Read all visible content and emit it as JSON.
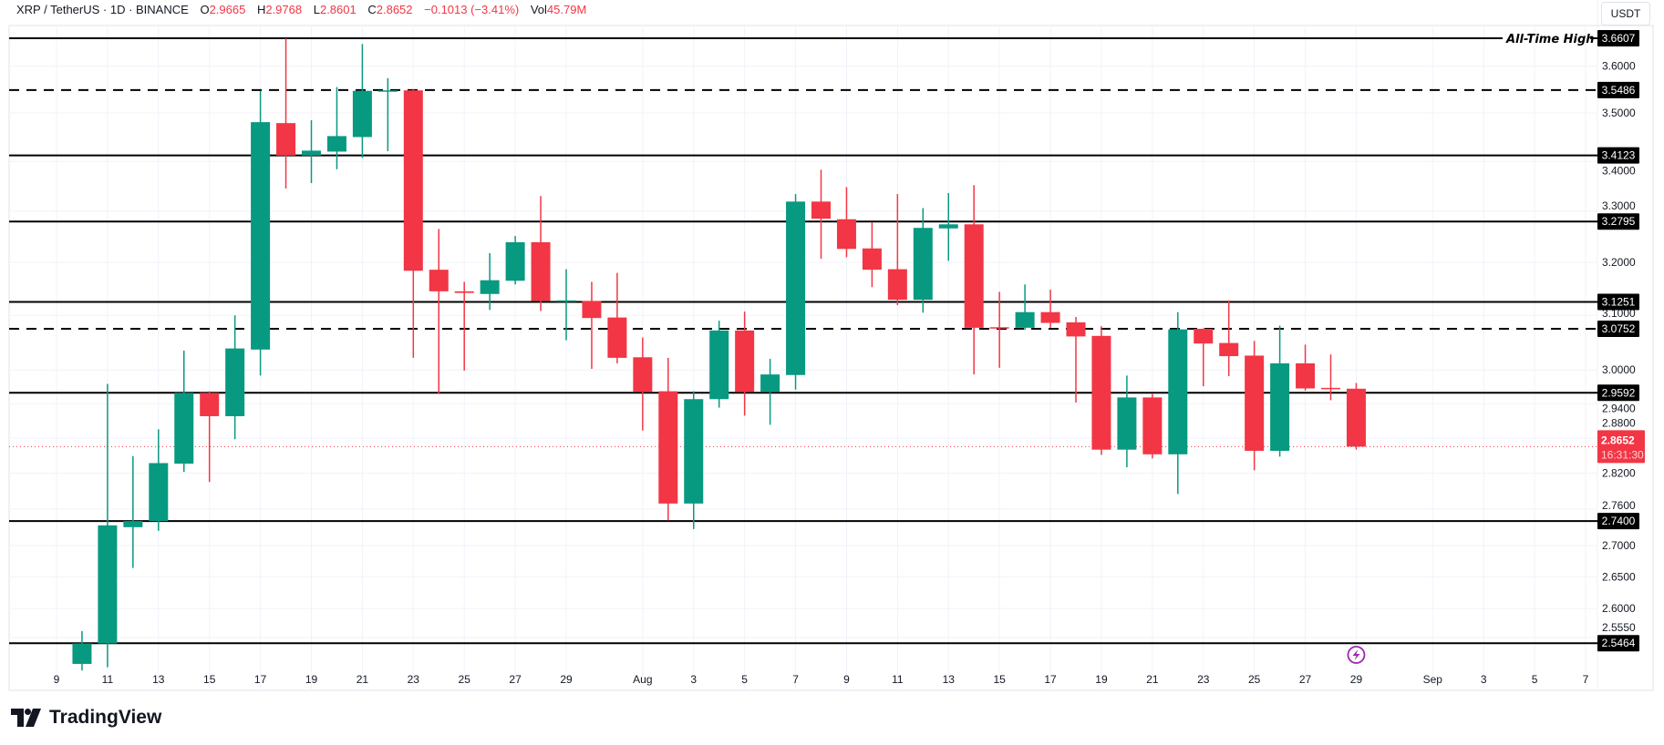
{
  "header": {
    "symbol": "XRP / TetherUS · 1D · BINANCE",
    "open_label": "O",
    "open": "2.9665",
    "high_label": "H",
    "high": "2.9768",
    "low_label": "L",
    "low": "2.8601",
    "close_label": "C",
    "close": "2.8652",
    "change": "−0.1013 (−3.41%)",
    "vol_label": "Vol",
    "vol": "45.79M"
  },
  "currency_button": "USDT",
  "branding": "TradingView",
  "colors": {
    "up": "#089981",
    "down": "#f23645",
    "level": "#000000",
    "event_icon": "#9c27b0"
  },
  "event_icon": "lightning-icon",
  "chart_data": {
    "type": "candlestick",
    "scale": "log",
    "grid": true,
    "ylim": [
      2.5,
      3.68
    ],
    "y_ticks": [
      "3.6000",
      "3.5000",
      "3.4000",
      "3.3000",
      "3.2000",
      "3.1000",
      "3.0000",
      "2.9400",
      "2.8800",
      "2.8200",
      "2.7600",
      "2.7000",
      "2.6500",
      "2.6000",
      "2.5550"
    ],
    "x_ticks": [
      {
        "label": "9",
        "date": "07-09"
      },
      {
        "label": "11",
        "date": "07-11"
      },
      {
        "label": "13",
        "date": "07-13"
      },
      {
        "label": "15",
        "date": "07-15"
      },
      {
        "label": "17",
        "date": "07-17"
      },
      {
        "label": "19",
        "date": "07-19"
      },
      {
        "label": "21",
        "date": "07-21"
      },
      {
        "label": "23",
        "date": "07-23"
      },
      {
        "label": "25",
        "date": "07-25"
      },
      {
        "label": "27",
        "date": "07-27"
      },
      {
        "label": "29",
        "date": "07-29"
      },
      {
        "label": "Aug",
        "date": "08-01"
      },
      {
        "label": "3",
        "date": "08-03"
      },
      {
        "label": "5",
        "date": "08-05"
      },
      {
        "label": "7",
        "date": "08-07"
      },
      {
        "label": "9",
        "date": "08-09"
      },
      {
        "label": "11",
        "date": "08-11"
      },
      {
        "label": "13",
        "date": "08-13"
      },
      {
        "label": "15",
        "date": "08-15"
      },
      {
        "label": "17",
        "date": "08-17"
      },
      {
        "label": "19",
        "date": "08-19"
      },
      {
        "label": "21",
        "date": "08-21"
      },
      {
        "label": "23",
        "date": "08-23"
      },
      {
        "label": "25",
        "date": "08-25"
      },
      {
        "label": "27",
        "date": "08-27"
      },
      {
        "label": "29",
        "date": "08-29"
      },
      {
        "label": "Sep",
        "date": "09-01"
      },
      {
        "label": "3",
        "date": "09-03"
      },
      {
        "label": "5",
        "date": "09-05"
      },
      {
        "label": "7",
        "date": "09-07"
      }
    ],
    "candles": [
      {
        "date": "07-10",
        "o": 2.515,
        "h": 2.565,
        "l": 2.505,
        "c": 2.546
      },
      {
        "date": "07-11",
        "o": 2.546,
        "h": 2.975,
        "l": 2.51,
        "c": 2.733
      },
      {
        "date": "07-12",
        "o": 2.73,
        "h": 2.849,
        "l": 2.664,
        "c": 2.74
      },
      {
        "date": "07-13",
        "o": 2.74,
        "h": 2.895,
        "l": 2.724,
        "c": 2.837
      },
      {
        "date": "07-14",
        "o": 2.836,
        "h": 3.035,
        "l": 2.822,
        "c": 2.959
      },
      {
        "date": "07-15",
        "o": 2.959,
        "h": 2.962,
        "l": 2.805,
        "c": 2.918
      },
      {
        "date": "07-16",
        "o": 2.918,
        "h": 3.1,
        "l": 2.878,
        "c": 3.039
      },
      {
        "date": "07-17",
        "o": 3.037,
        "h": 3.547,
        "l": 2.99,
        "c": 3.481
      },
      {
        "date": "07-18",
        "o": 3.479,
        "h": 3.6607,
        "l": 3.345,
        "c": 3.412
      },
      {
        "date": "07-19",
        "o": 3.412,
        "h": 3.485,
        "l": 3.356,
        "c": 3.422
      },
      {
        "date": "07-20",
        "o": 3.42,
        "h": 3.555,
        "l": 3.384,
        "c": 3.452
      },
      {
        "date": "07-21",
        "o": 3.45,
        "h": 3.648,
        "l": 3.407,
        "c": 3.547
      },
      {
        "date": "07-22",
        "o": 3.547,
        "h": 3.574,
        "l": 3.421,
        "c": 3.548
      },
      {
        "date": "07-23",
        "o": 3.548,
        "h": 3.55,
        "l": 3.022,
        "c": 3.184
      },
      {
        "date": "07-24",
        "o": 3.186,
        "h": 3.265,
        "l": 2.957,
        "c": 3.145
      },
      {
        "date": "07-25",
        "o": 3.145,
        "h": 3.163,
        "l": 2.999,
        "c": 3.142
      },
      {
        "date": "07-26",
        "o": 3.14,
        "h": 3.218,
        "l": 3.11,
        "c": 3.166
      },
      {
        "date": "07-27",
        "o": 3.165,
        "h": 3.251,
        "l": 3.158,
        "c": 3.239
      },
      {
        "date": "07-28",
        "o": 3.239,
        "h": 3.33,
        "l": 3.108,
        "c": 3.127
      },
      {
        "date": "07-29",
        "o": 3.126,
        "h": 3.187,
        "l": 3.054,
        "c": 3.128
      },
      {
        "date": "07-30",
        "o": 3.127,
        "h": 3.163,
        "l": 3.002,
        "c": 3.095
      },
      {
        "date": "07-31",
        "o": 3.096,
        "h": 3.18,
        "l": 3.012,
        "c": 3.022
      },
      {
        "date": "08-01",
        "o": 3.023,
        "h": 3.059,
        "l": 2.893,
        "c": 2.961
      },
      {
        "date": "08-02",
        "o": 2.962,
        "h": 3.022,
        "l": 2.741,
        "c": 2.769
      },
      {
        "date": "08-03",
        "o": 2.769,
        "h": 2.962,
        "l": 2.727,
        "c": 2.948
      },
      {
        "date": "08-04",
        "o": 2.948,
        "h": 3.09,
        "l": 2.933,
        "c": 3.072
      },
      {
        "date": "08-05",
        "o": 3.072,
        "h": 3.107,
        "l": 2.919,
        "c": 2.961
      },
      {
        "date": "08-06",
        "o": 2.961,
        "h": 3.02,
        "l": 2.903,
        "c": 2.992
      },
      {
        "date": "08-07",
        "o": 2.991,
        "h": 3.334,
        "l": 2.965,
        "c": 3.319
      },
      {
        "date": "08-08",
        "o": 3.319,
        "h": 3.383,
        "l": 3.207,
        "c": 3.285
      },
      {
        "date": "08-09",
        "o": 3.284,
        "h": 3.348,
        "l": 3.21,
        "c": 3.226
      },
      {
        "date": "08-10",
        "o": 3.227,
        "h": 3.278,
        "l": 3.153,
        "c": 3.186
      },
      {
        "date": "08-11",
        "o": 3.187,
        "h": 3.334,
        "l": 3.119,
        "c": 3.129
      },
      {
        "date": "08-12",
        "o": 3.129,
        "h": 3.306,
        "l": 3.105,
        "c": 3.267
      },
      {
        "date": "08-13",
        "o": 3.266,
        "h": 3.336,
        "l": 3.203,
        "c": 3.274
      },
      {
        "date": "08-14",
        "o": 3.274,
        "h": 3.352,
        "l": 2.992,
        "c": 3.077
      },
      {
        "date": "08-15",
        "o": 3.078,
        "h": 3.144,
        "l": 3.004,
        "c": 3.077
      },
      {
        "date": "08-16",
        "o": 3.077,
        "h": 3.158,
        "l": 3.073,
        "c": 3.106
      },
      {
        "date": "08-17",
        "o": 3.106,
        "h": 3.148,
        "l": 3.077,
        "c": 3.086
      },
      {
        "date": "08-18",
        "o": 3.087,
        "h": 3.097,
        "l": 2.942,
        "c": 3.061
      },
      {
        "date": "08-19",
        "o": 3.062,
        "h": 3.08,
        "l": 2.851,
        "c": 2.86
      },
      {
        "date": "08-20",
        "o": 2.86,
        "h": 2.99,
        "l": 2.83,
        "c": 2.951
      },
      {
        "date": "08-21",
        "o": 2.951,
        "h": 2.957,
        "l": 2.845,
        "c": 2.852
      },
      {
        "date": "08-22",
        "o": 2.852,
        "h": 3.106,
        "l": 2.785,
        "c": 3.074
      },
      {
        "date": "08-23",
        "o": 3.075,
        "h": 3.076,
        "l": 2.971,
        "c": 3.048
      },
      {
        "date": "08-24",
        "o": 3.049,
        "h": 3.128,
        "l": 2.989,
        "c": 3.025
      },
      {
        "date": "08-25",
        "o": 3.026,
        "h": 3.053,
        "l": 2.825,
        "c": 2.858
      },
      {
        "date": "08-26",
        "o": 2.858,
        "h": 3.081,
        "l": 2.848,
        "c": 3.012
      },
      {
        "date": "08-27",
        "o": 3.012,
        "h": 3.046,
        "l": 2.963,
        "c": 2.967
      },
      {
        "date": "08-28",
        "o": 2.968,
        "h": 3.028,
        "l": 2.946,
        "c": 2.966
      },
      {
        "date": "08-29",
        "o": 2.9665,
        "h": 2.9768,
        "l": 2.8601,
        "c": 2.8652
      }
    ],
    "levels": [
      {
        "value": "3.6607",
        "style": "solid",
        "label": "All-Time High"
      },
      {
        "value": "3.5486",
        "style": "dashed"
      },
      {
        "value": "3.4123",
        "style": "solid"
      },
      {
        "value": "3.2795",
        "style": "solid"
      },
      {
        "value": "3.1251",
        "style": "solid"
      },
      {
        "value": "3.0752",
        "style": "dashed"
      },
      {
        "value": "2.9592",
        "style": "solid"
      },
      {
        "value": "2.7400",
        "style": "solid"
      },
      {
        "value": "2.5464",
        "style": "solid"
      }
    ],
    "last_price": {
      "value": "2.8652",
      "countdown": "16:31:30"
    },
    "event_date": "08-29"
  }
}
